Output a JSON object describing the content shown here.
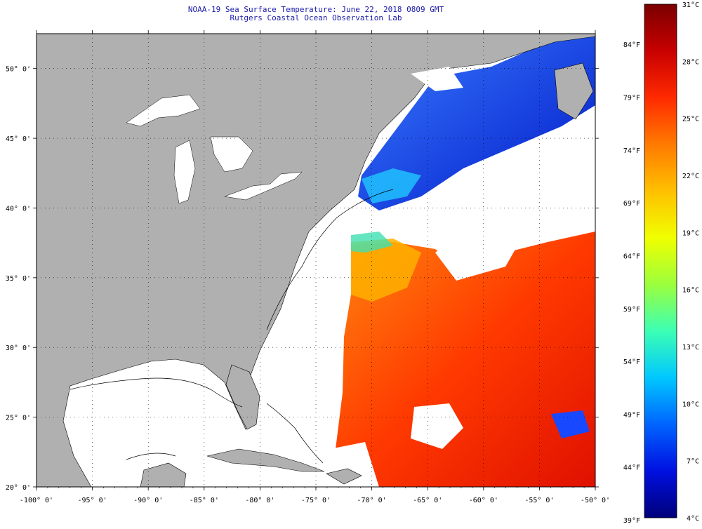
{
  "title": "NOAA-19 Sea Surface Temperature:  June 22, 2018 0809 GMT",
  "subtitle": "Rutgers Coastal Ocean Observation Lab",
  "map": {
    "lon_range": [
      -100,
      -50
    ],
    "lat_range": [
      20,
      52.5
    ],
    "lon_labels": [
      {
        "lon": -100,
        "text": "-100° 0'"
      },
      {
        "lon": -95,
        "text": "-95° 0'"
      },
      {
        "lon": -90,
        "text": "-90° 0'"
      },
      {
        "lon": -85,
        "text": "-85° 0'"
      },
      {
        "lon": -80,
        "text": "-80° 0'"
      },
      {
        "lon": -75,
        "text": "-75° 0'"
      },
      {
        "lon": -70,
        "text": "-70° 0'"
      },
      {
        "lon": -65,
        "text": "-65° 0'"
      },
      {
        "lon": -60,
        "text": "-60° 0'"
      },
      {
        "lon": -55,
        "text": "-55° 0'"
      },
      {
        "lon": -50,
        "text": "-50° 0'"
      }
    ],
    "lat_labels": [
      {
        "lat": 50,
        "text": "50° 0'"
      },
      {
        "lat": 45,
        "text": "45° 0'"
      },
      {
        "lat": 40,
        "text": "40° 0'"
      },
      {
        "lat": 35,
        "text": "35° 0'"
      },
      {
        "lat": 30,
        "text": "30° 0'"
      },
      {
        "lat": 25,
        "text": "25° 0'"
      },
      {
        "lat": 20,
        "text": "20° 0'"
      }
    ]
  },
  "colorbar": {
    "min_c": 4,
    "max_c": 31,
    "min_f": 39,
    "max_f": 88,
    "celsius_labels": [
      "31°C",
      "28°C",
      "25°C",
      "22°C",
      "19°C",
      "16°C",
      "13°C",
      "10°C",
      "7°C",
      "4°C"
    ],
    "fahrenheit_labels": [
      "84°F",
      "79°F",
      "74°F",
      "69°F",
      "64°F",
      "59°F",
      "54°F",
      "49°F",
      "44°F",
      "39°F"
    ],
    "colors": [
      "#7a0000",
      "#c80000",
      "#ff2a00",
      "#ff7a00",
      "#ffc000",
      "#f0ff00",
      "#9cff3c",
      "#3cffb4",
      "#00c8ff",
      "#0064ff",
      "#0010e0",
      "#00007a"
    ]
  },
  "colors": {
    "land": "#b0b0b0",
    "title": "#1a1aa8",
    "no_data": "#ffffff"
  }
}
